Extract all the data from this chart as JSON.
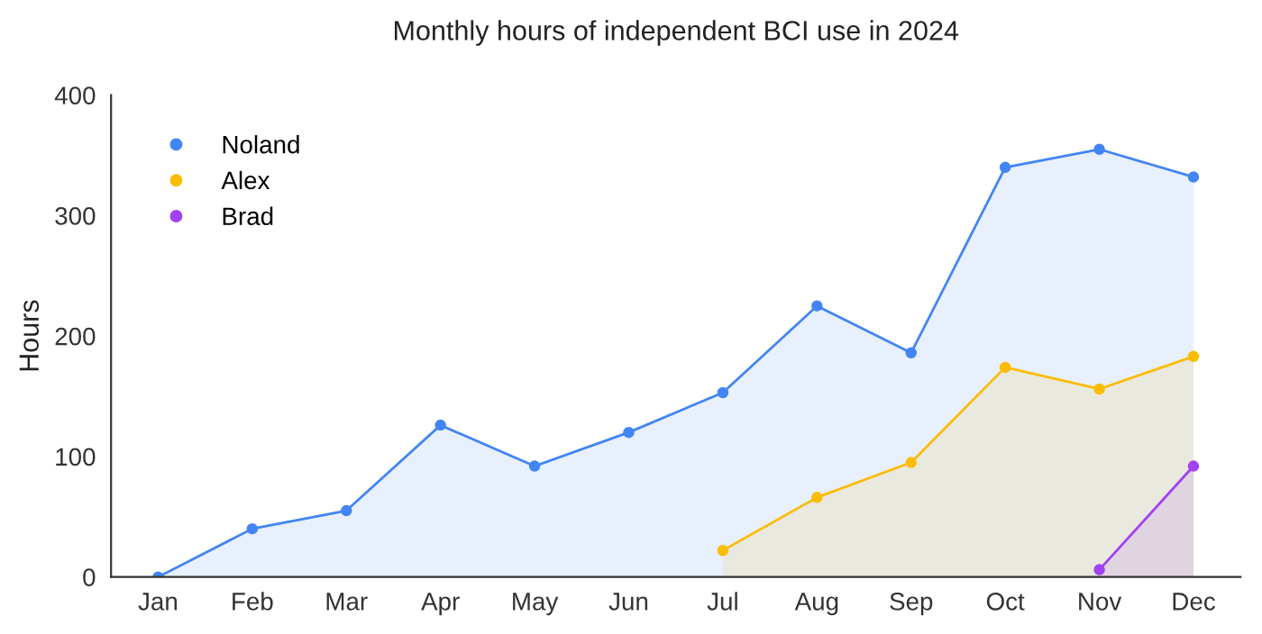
{
  "chart_data": {
    "type": "area",
    "title": "Monthly hours of independent BCI use in 2024",
    "ylabel": "Hours",
    "categories": [
      "Jan",
      "Feb",
      "Mar",
      "Apr",
      "May",
      "Jun",
      "Jul",
      "Aug",
      "Sep",
      "Oct",
      "Nov",
      "Dec"
    ],
    "series": [
      {
        "name": "Noland",
        "color": "#4285f4",
        "values": [
          0,
          40,
          55,
          126,
          92,
          120,
          153,
          225,
          186,
          340,
          355,
          332
        ]
      },
      {
        "name": "Alex",
        "color": "#fbbc04",
        "values": [
          null,
          null,
          null,
          null,
          null,
          null,
          22,
          66,
          95,
          174,
          156,
          183
        ]
      },
      {
        "name": "Brad",
        "color": "#a142f4",
        "values": [
          null,
          null,
          null,
          null,
          null,
          null,
          null,
          null,
          null,
          null,
          6,
          92
        ]
      }
    ],
    "ylim": [
      0,
      400
    ],
    "yticks": [
      0,
      100,
      200,
      300,
      400
    ],
    "grid": false,
    "legend": "top left",
    "marker": "circle",
    "line_style": "solid"
  }
}
